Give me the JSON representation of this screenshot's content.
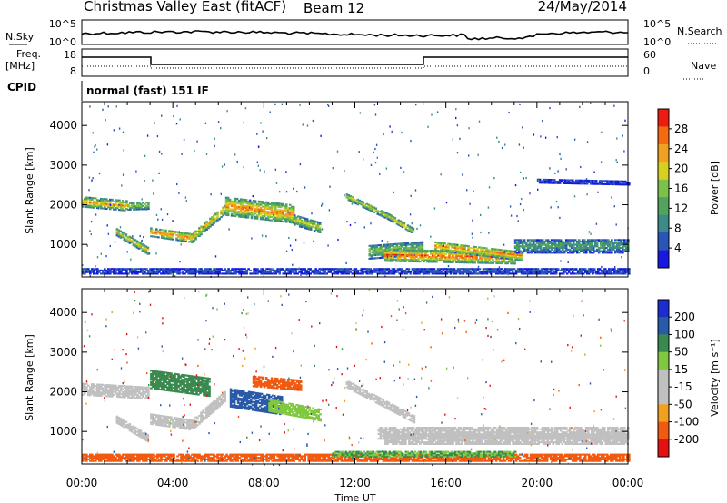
{
  "header": {
    "title": "Christmas Valley East (fitACF)",
    "beam": "Beam 12",
    "date": "24/May/2014"
  },
  "top_panels": {
    "nsky_label": "N.Sky",
    "nsearch_label": "N.Search",
    "nsky_ticks": [
      "10^5",
      "10^0"
    ],
    "nsearch_ticks": [
      "10^5",
      "10^0"
    ],
    "freq_label": "Freq.",
    "freq_unit": "[MHz]",
    "freq_ticks": [
      "18",
      "8"
    ],
    "nave_label": "Nave",
    "nave_ticks": [
      "60",
      "0"
    ],
    "cpid_label": "CPID",
    "cpid_value": "normal (fast) 151 IF"
  },
  "time_axis": {
    "label": "Time UT",
    "ticks": [
      "00:00",
      "04:00",
      "08:00",
      "12:00",
      "16:00",
      "20:00",
      "00:00"
    ]
  },
  "colors": {
    "power_scale": [
      "#1818e0",
      "#2a55b8",
      "#3c8a8a",
      "#52a35e",
      "#7cc24a",
      "#d8d020",
      "#f2a020",
      "#f56a10",
      "#ee1c10"
    ],
    "velocity_scale": [
      "#e61010",
      "#f25a10",
      "#f2a020",
      "#c0c0c0",
      "#c0c0c0",
      "#80c840",
      "#3a8a50",
      "#285aa8",
      "#1a2ed0"
    ]
  },
  "chart_data": [
    {
      "type": "heatmap",
      "title": "Power",
      "ylabel": "Slant Range [km]",
      "xlabel": "Time UT",
      "x": [
        "00:00",
        "04:00",
        "08:00",
        "12:00",
        "16:00",
        "20:00",
        "00:00"
      ],
      "xlim_hours": [
        0,
        24
      ],
      "ylim": [
        180,
        4600
      ],
      "yticks": [
        1000,
        2000,
        3000,
        4000
      ],
      "colorbar": {
        "label": "Power [dB]",
        "range": [
          0,
          32
        ],
        "ticks": [
          "28",
          "24",
          "20",
          "16",
          "12",
          "8",
          "4"
        ]
      },
      "echo_bands": [
        {
          "t_start": 0.0,
          "t_end": 2.0,
          "r_start": 2060,
          "r_end": 1960,
          "width": 250,
          "level": 24
        },
        {
          "t_start": 1.5,
          "t_end": 2.9,
          "r_start": 1300,
          "r_end": 820,
          "width": 180,
          "level": 22
        },
        {
          "t_start": 2.0,
          "t_end": 2.9,
          "r_start": 1960,
          "r_end": 1980,
          "width": 200,
          "level": 18
        },
        {
          "t_start": 3.0,
          "t_end": 4.8,
          "r_start": 1300,
          "r_end": 1150,
          "width": 220,
          "level": 26
        },
        {
          "t_start": 4.8,
          "t_end": 6.3,
          "r_start": 1150,
          "r_end": 1900,
          "width": 230,
          "level": 24
        },
        {
          "t_start": 6.3,
          "t_end": 9.3,
          "r_start": 1950,
          "r_end": 1750,
          "width": 450,
          "level": 26
        },
        {
          "t_start": 9.3,
          "t_end": 10.5,
          "r_start": 1600,
          "r_end": 1400,
          "width": 250,
          "level": 20
        },
        {
          "t_start": 11.6,
          "t_end": 13.6,
          "r_start": 2200,
          "r_end": 1650,
          "width": 150,
          "level": 20
        },
        {
          "t_start": 13.4,
          "t_end": 14.6,
          "r_start": 1700,
          "r_end": 1300,
          "width": 130,
          "level": 22
        },
        {
          "t_start": 12.6,
          "t_end": 15.0,
          "r_start": 800,
          "r_end": 900,
          "width": 350,
          "level": 16
        },
        {
          "t_start": 13.3,
          "t_end": 19.0,
          "r_start": 720,
          "r_end": 650,
          "width": 300,
          "level": 28
        },
        {
          "t_start": 15.5,
          "t_end": 19.3,
          "r_start": 950,
          "r_end": 700,
          "width": 230,
          "level": 26
        },
        {
          "t_start": 19.0,
          "t_end": 24.0,
          "r_start": 950,
          "r_end": 950,
          "width": 350,
          "level": 12
        },
        {
          "t_start": 20.0,
          "t_end": 24.0,
          "r_start": 2600,
          "r_end": 2550,
          "width": 120,
          "level": 5
        },
        {
          "t_start": 0.0,
          "t_end": 24.0,
          "r_start": 320,
          "r_end": 320,
          "width": 150,
          "level": 6
        }
      ]
    },
    {
      "type": "heatmap",
      "title": "Velocity",
      "ylabel": "Slant Range [km]",
      "xlabel": "Time UT",
      "x": [
        "00:00",
        "04:00",
        "08:00",
        "12:00",
        "16:00",
        "20:00",
        "00:00"
      ],
      "xlim_hours": [
        0,
        24
      ],
      "ylim": [
        180,
        4600
      ],
      "yticks": [
        1000,
        2000,
        3000,
        4000
      ],
      "colorbar": {
        "label": "Velocity [m s⁻¹]",
        "range": [
          -250,
          250
        ],
        "ticks": [
          "200",
          "100",
          "50",
          "15",
          "-15",
          "-50",
          "-100",
          "-200"
        ]
      },
      "echo_bands": [
        {
          "t_start": 0.0,
          "t_end": 2.9,
          "r_start": 2060,
          "r_end": 1960,
          "width": 300,
          "velocity": 0
        },
        {
          "t_start": 1.5,
          "t_end": 2.9,
          "r_start": 1300,
          "r_end": 820,
          "width": 200,
          "velocity": 0
        },
        {
          "t_start": 3.0,
          "t_end": 4.8,
          "r_start": 1300,
          "r_end": 1150,
          "width": 250,
          "velocity": 0
        },
        {
          "t_start": 4.8,
          "t_end": 6.3,
          "r_start": 1150,
          "r_end": 1900,
          "width": 260,
          "velocity": 0
        },
        {
          "t_start": 3.0,
          "t_end": 5.6,
          "r_start": 2300,
          "r_end": 2100,
          "width": 450,
          "velocity": 60
        },
        {
          "t_start": 6.5,
          "t_end": 8.8,
          "r_start": 1850,
          "r_end": 1650,
          "width": 480,
          "velocity": 130
        },
        {
          "t_start": 8.2,
          "t_end": 10.5,
          "r_start": 1650,
          "r_end": 1400,
          "width": 300,
          "velocity": 40
        },
        {
          "t_start": 7.5,
          "t_end": 9.6,
          "r_start": 2250,
          "r_end": 2150,
          "width": 250,
          "velocity": -60
        },
        {
          "t_start": 11.6,
          "t_end": 14.6,
          "r_start": 2200,
          "r_end": 1300,
          "width": 200,
          "velocity": 0
        },
        {
          "t_start": 13.0,
          "t_end": 24.0,
          "r_start": 950,
          "r_end": 950,
          "width": 300,
          "velocity": 0
        },
        {
          "t_start": 13.3,
          "t_end": 24.0,
          "r_start": 800,
          "r_end": 800,
          "width": 260,
          "velocity": 0
        },
        {
          "t_start": 0.0,
          "t_end": 24.0,
          "r_start": 330,
          "r_end": 330,
          "width": 180,
          "velocity": -70
        },
        {
          "t_start": 11.0,
          "t_end": 19.0,
          "r_start": 420,
          "r_end": 420,
          "width": 140,
          "velocity": 50
        }
      ]
    }
  ]
}
